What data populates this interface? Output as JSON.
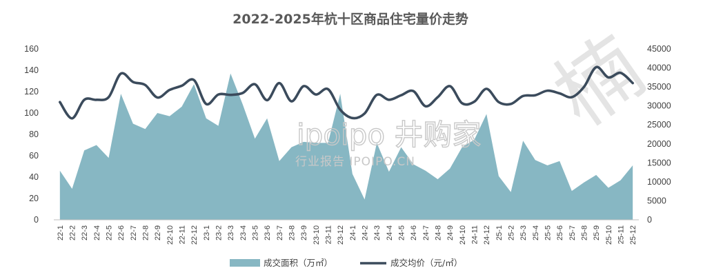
{
  "chart_data": {
    "type": "area+line",
    "title": "2022-2025年杭十区商品住宅量价走势",
    "categories": [
      "22-1",
      "22-2",
      "22-3",
      "22-4",
      "22-5",
      "22-6",
      "22-7",
      "22-8",
      "22-9",
      "22-10",
      "22-11",
      "22-12",
      "23-1",
      "23-2",
      "23-3",
      "23-4",
      "23-5",
      "23-6",
      "23-7",
      "23-8",
      "23-9",
      "23-10",
      "23-11",
      "23-12",
      "24-1",
      "24-2",
      "24-3",
      "24-4",
      "24-5",
      "24-6",
      "24-7",
      "24-8",
      "24-9",
      "24-10",
      "24-11",
      "24-12",
      "25-1",
      "25-2",
      "25-3",
      "25-4",
      "25-5",
      "25-6",
      "25-7",
      "25-8",
      "25-9",
      "25-10",
      "25-11",
      "25-12"
    ],
    "series": [
      {
        "name": "成交面积（万㎡）",
        "type": "area",
        "axis": "left",
        "color": "#87b7c3",
        "values": [
          46,
          29,
          65,
          70,
          58,
          118,
          90,
          85,
          100,
          97,
          106,
          127,
          95,
          88,
          137,
          108,
          76,
          95,
          55,
          68,
          73,
          72,
          72,
          118,
          43,
          19,
          72,
          45,
          68,
          52,
          46,
          38,
          48,
          68,
          75,
          99,
          41,
          26,
          74,
          56,
          51,
          55,
          27,
          35,
          42,
          30,
          37,
          51
        ]
      },
      {
        "name": "成交均价（元/㎡）",
        "type": "line",
        "axis": "right",
        "color": "#3b4b5c",
        "values": [
          31000,
          26700,
          31600,
          31600,
          32300,
          38500,
          36300,
          35500,
          32200,
          34200,
          35300,
          36800,
          30500,
          33000,
          32900,
          33400,
          35700,
          31500,
          36000,
          31200,
          35200,
          33000,
          34400,
          29000,
          26800,
          28000,
          32900,
          31600,
          32800,
          33900,
          29900,
          32300,
          35200,
          30700,
          31100,
          34500,
          31000,
          30500,
          32600,
          32800,
          34000,
          33300,
          32300,
          35000,
          40200,
          37500,
          38700,
          36000
        ]
      }
    ],
    "y_left": {
      "min": 0,
      "max": 160,
      "step": 20,
      "ticks": [
        "0",
        "20",
        "40",
        "60",
        "80",
        "100",
        "120",
        "140",
        "160"
      ]
    },
    "y_right": {
      "min": 0,
      "max": 45000,
      "step": 5000,
      "ticks": [
        "0",
        "5000",
        "10000",
        "15000",
        "20000",
        "25000",
        "30000",
        "35000",
        "40000",
        "45000"
      ]
    },
    "grid": false,
    "legend": "bottom-center"
  },
  "watermark": {
    "brand": "ipoipo 井购家",
    "site": "行业报告 IPOIPO.CN",
    "corner": "楠"
  }
}
